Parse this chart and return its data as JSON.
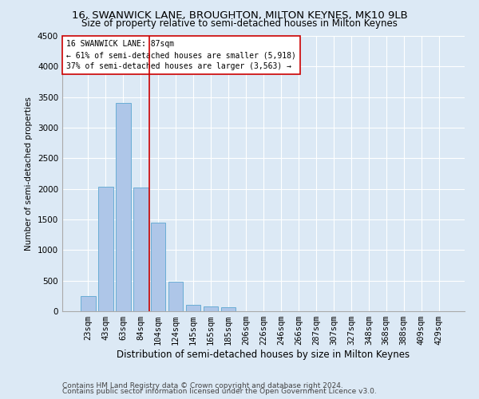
{
  "title1": "16, SWANWICK LANE, BROUGHTON, MILTON KEYNES, MK10 9LB",
  "title2": "Size of property relative to semi-detached houses in Milton Keynes",
  "xlabel": "Distribution of semi-detached houses by size in Milton Keynes",
  "ylabel": "Number of semi-detached properties",
  "footer1": "Contains HM Land Registry data © Crown copyright and database right 2024.",
  "footer2": "Contains public sector information licensed under the Open Government Licence v3.0.",
  "categories": [
    "23sqm",
    "43sqm",
    "63sqm",
    "84sqm",
    "104sqm",
    "124sqm",
    "145sqm",
    "165sqm",
    "185sqm",
    "206sqm",
    "226sqm",
    "246sqm",
    "266sqm",
    "287sqm",
    "307sqm",
    "327sqm",
    "348sqm",
    "368sqm",
    "388sqm",
    "409sqm",
    "429sqm"
  ],
  "bar_values": [
    250,
    2030,
    3400,
    2020,
    1450,
    480,
    110,
    80,
    60,
    0,
    0,
    0,
    0,
    0,
    0,
    0,
    0,
    0,
    0,
    0,
    0
  ],
  "bar_color": "#aec6e8",
  "bar_edge_color": "#6aadd5",
  "background_color": "#dce9f5",
  "grid_color": "#ffffff",
  "annotation_box_text": [
    "16 SWANWICK LANE: 87sqm",
    "← 61% of semi-detached houses are smaller (5,918)",
    "37% of semi-detached houses are larger (3,563) →"
  ],
  "annotation_box_color": "#ffffff",
  "annotation_line_color": "#cc0000",
  "ylim": [
    0,
    4500
  ],
  "yticks": [
    0,
    500,
    1000,
    1500,
    2000,
    2500,
    3000,
    3500,
    4000,
    4500
  ],
  "title1_fontsize": 9.5,
  "title2_fontsize": 8.5,
  "xlabel_fontsize": 8.5,
  "ylabel_fontsize": 7.5,
  "tick_fontsize": 7.5,
  "footer_fontsize": 6.5,
  "ann_fontsize": 7.0
}
